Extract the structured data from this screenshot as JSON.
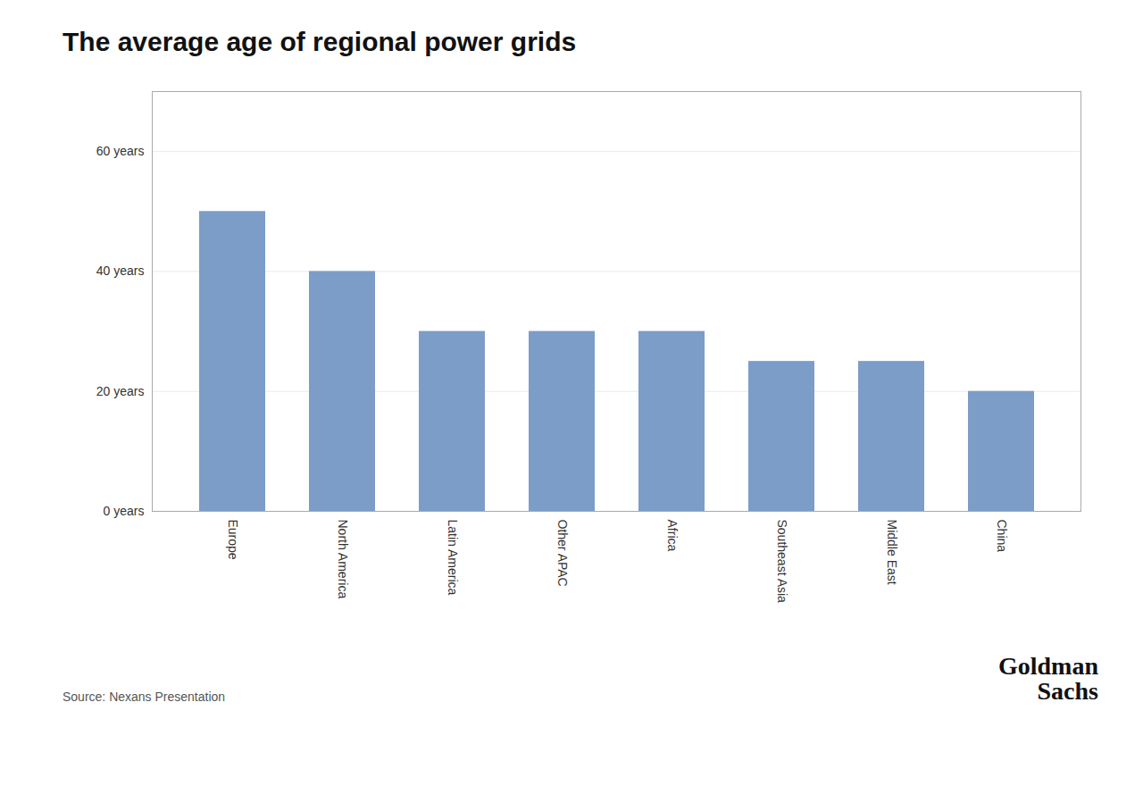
{
  "chart_data": {
    "type": "bar",
    "title": "The average age of regional power grids",
    "categories": [
      "Europe",
      "North America",
      "Latin America",
      "Other APAC",
      "Africa",
      "Southeast Asia",
      "Middle East",
      "China"
    ],
    "values": [
      50,
      40,
      30,
      30,
      30,
      25,
      25,
      20
    ],
    "color": "#7B9DC8",
    "ylim": [
      0,
      70
    ],
    "yticks": [
      {
        "value": 0,
        "label": "0 years"
      },
      {
        "value": 20,
        "label": "20 years"
      },
      {
        "value": 40,
        "label": "40 years"
      },
      {
        "value": 60,
        "label": "60 years"
      }
    ],
    "grid": true,
    "caption": "Source: Nexans Presentation",
    "annotations": [
      "Goldman",
      "Sachs"
    ]
  }
}
